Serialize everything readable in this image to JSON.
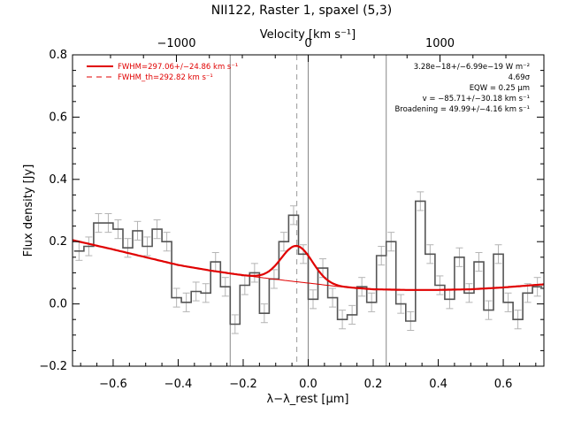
{
  "chart_data": {
    "type": "line",
    "title": "NII122, Raster 1, spaxel (5,3)",
    "xlabel": "λ−λ_rest [μm]",
    "ylabel": "Flux density [Jy]",
    "top_xlabel": "Velocity [km s⁻¹]",
    "xlim": [
      -0.725,
      0.725
    ],
    "ylim": [
      -0.2,
      0.8
    ],
    "xticks": [
      -0.6,
      -0.4,
      -0.2,
      0.0,
      0.2,
      0.4,
      0.6
    ],
    "xtick_labels": [
      "−0.6",
      "−0.4",
      "−0.2",
      "0.0",
      "0.2",
      "0.4",
      "0.6"
    ],
    "yticks": [
      -0.2,
      0.0,
      0.2,
      0.4,
      0.6,
      0.8
    ],
    "ytick_labels": [
      "−0.2",
      "0.0",
      "0.2",
      "0.4",
      "0.6",
      "0.8"
    ],
    "top_ticks": [
      -1000,
      0,
      1000
    ],
    "top_tick_labels": [
      "−1000",
      "0",
      "1000"
    ],
    "vlines_solid": [
      -0.24,
      0.0,
      0.24
    ],
    "vline_dashed": -0.035,
    "legend": [
      {
        "label": "FWHM=297.06+/−24.86 km s⁻¹",
        "style": "solid",
        "color": "#e00000"
      },
      {
        "label": "FWHM_th=292.82 km s⁻¹",
        "style": "dashed",
        "color": "#e00000"
      }
    ],
    "annotations": [
      "3.28e−18+/−6.99e−19 W m⁻²",
      "4.69σ",
      "EQW = 0.25 μm",
      "v = −85.71+/−30.18 km s⁻¹",
      "Broadening = 49.99+/−4.16 km s⁻¹"
    ],
    "spectrum": {
      "x": [
        -0.705,
        -0.675,
        -0.645,
        -0.615,
        -0.585,
        -0.555,
        -0.525,
        -0.495,
        -0.465,
        -0.435,
        -0.405,
        -0.375,
        -0.345,
        -0.315,
        -0.285,
        -0.255,
        -0.225,
        -0.195,
        -0.165,
        -0.135,
        -0.105,
        -0.075,
        -0.045,
        -0.015,
        0.015,
        0.045,
        0.075,
        0.105,
        0.135,
        0.165,
        0.195,
        0.225,
        0.255,
        0.285,
        0.315,
        0.345,
        0.375,
        0.405,
        0.435,
        0.465,
        0.495,
        0.525,
        0.555,
        0.585,
        0.615,
        0.645,
        0.675,
        0.705
      ],
      "y": [
        0.17,
        0.185,
        0.26,
        0.26,
        0.24,
        0.18,
        0.235,
        0.185,
        0.24,
        0.2,
        0.02,
        0.005,
        0.04,
        0.035,
        0.135,
        0.055,
        -0.065,
        0.06,
        0.1,
        -0.03,
        0.08,
        0.2,
        0.285,
        0.16,
        0.015,
        0.115,
        0.02,
        -0.05,
        -0.035,
        0.055,
        0.005,
        0.155,
        0.2,
        0.0,
        -0.055,
        0.33,
        0.16,
        0.06,
        0.015,
        0.15,
        0.035,
        0.135,
        -0.02,
        0.16,
        0.005,
        -0.05,
        0.035,
        0.055
      ],
      "err": 0.03
    },
    "fit_continuum": {
      "x": [
        -0.725,
        -0.6,
        -0.5,
        -0.4,
        -0.3,
        -0.2,
        -0.1,
        0.0,
        0.1,
        0.2,
        0.3,
        0.4,
        0.5,
        0.6,
        0.725
      ],
      "y": [
        0.205,
        0.175,
        0.15,
        0.125,
        0.107,
        0.092,
        0.079,
        0.067,
        0.055,
        0.047,
        0.045,
        0.045,
        0.047,
        0.053,
        0.063
      ]
    },
    "fit_line": {
      "center": -0.035,
      "sigma": 0.048,
      "amplitude": 0.115
    }
  }
}
